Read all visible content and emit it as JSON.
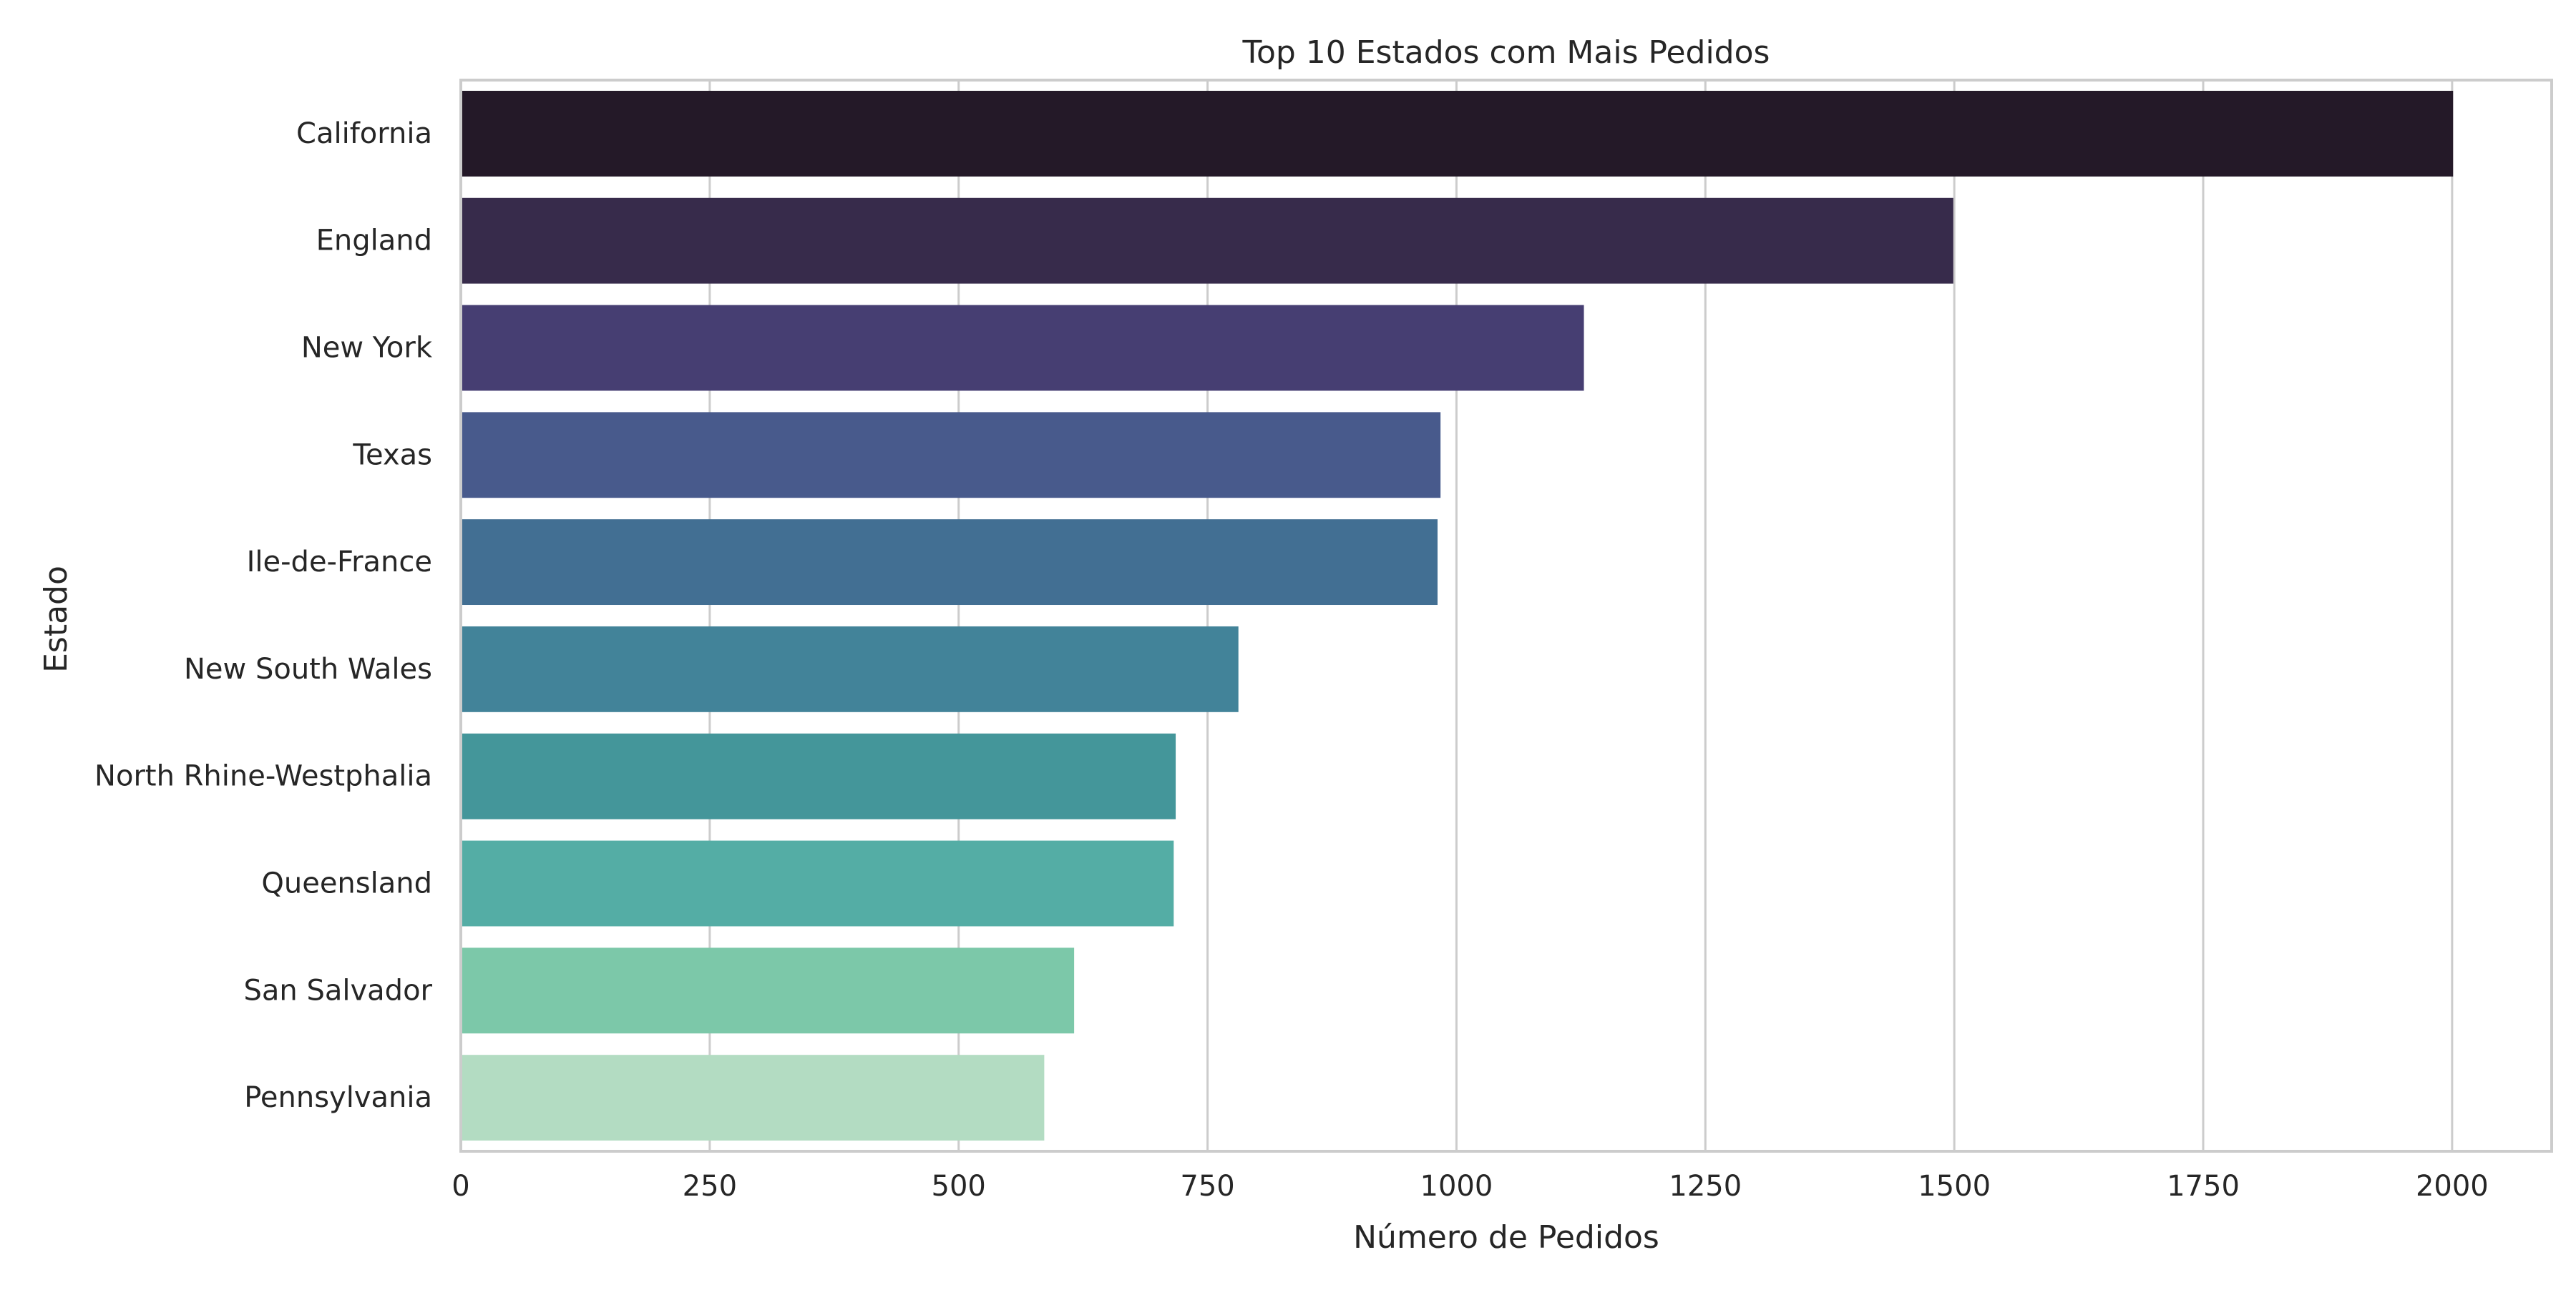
{
  "chart_data": {
    "type": "bar",
    "orientation": "horizontal",
    "title": "Top 10 Estados com Mais Pedidos",
    "xlabel": "Número de Pedidos",
    "ylabel": "Estado",
    "xlim": [
      0,
      2100
    ],
    "xticks": [
      0,
      250,
      500,
      750,
      1000,
      1250,
      1500,
      1750,
      2000
    ],
    "grid": "vertical",
    "categories": [
      "California",
      "England",
      "New York",
      "Texas",
      "Ile-de-France",
      "New South Wales",
      "North Rhine-Westphalia",
      "Queensland",
      "San Salvador",
      "Pennsylvania"
    ],
    "values": [
      2001,
      1499,
      1128,
      984,
      981,
      781,
      718,
      716,
      616,
      586
    ],
    "colors": [
      "#241928",
      "#372b4b",
      "#463e72",
      "#485a8c",
      "#426f93",
      "#428399",
      "#44969a",
      "#54ada5",
      "#7cc8a9",
      "#b3dcc2"
    ]
  }
}
